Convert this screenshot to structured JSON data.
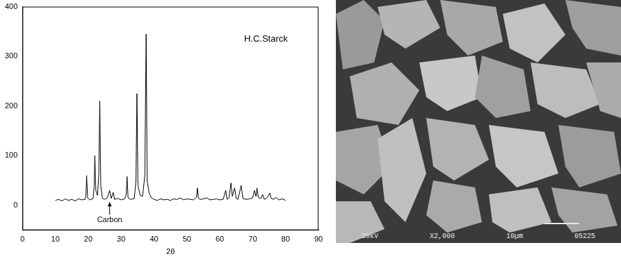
{
  "chart_data": {
    "type": "line",
    "color": "#000000",
    "grid": false,
    "x_label": "2θ",
    "xlim": [
      0,
      90
    ],
    "xticks": [
      0,
      10,
      20,
      30,
      40,
      50,
      60,
      70,
      80,
      90
    ],
    "ylim": [
      -50,
      400
    ],
    "yticks": [
      0,
      100,
      200,
      300,
      400
    ],
    "annotations": [
      {
        "text": "H.C.Starck",
        "x": 74,
        "y": 335
      },
      {
        "text": "Carbon",
        "x": 26.5,
        "y": -30
      }
    ],
    "x": [
      10,
      11,
      12,
      13,
      14,
      15,
      16,
      17,
      18,
      19,
      19.3,
      19.5,
      19.8,
      20.5,
      21.5,
      21.8,
      22,
      22.3,
      22.8,
      23.2,
      23.5,
      23.8,
      24.3,
      25,
      25.8,
      26.5,
      27,
      27.6,
      28,
      29,
      30,
      31,
      31.5,
      31.8,
      32.1,
      33,
      34,
      34.5,
      34.8,
      35.1,
      35.8,
      36.5,
      37.2,
      37.6,
      37.9,
      38.5,
      39.2,
      40,
      41,
      42,
      43,
      44,
      45,
      46,
      47,
      48,
      49,
      50,
      51,
      52,
      52.9,
      53.2,
      53.5,
      54,
      55,
      56,
      57,
      58,
      59,
      60,
      61,
      61.8,
      62.2,
      62.8,
      63.4,
      63.8,
      64.5,
      65,
      65.5,
      66.5,
      67,
      68,
      69,
      70,
      70.5,
      71,
      71.3,
      71.7,
      72.5,
      73,
      73.5,
      74.5,
      75.2,
      75.6,
      76.5,
      77,
      78,
      79,
      80
    ],
    "values": [
      10,
      12,
      9,
      13,
      10,
      12,
      9,
      13,
      11,
      12,
      20,
      60,
      15,
      11,
      14,
      40,
      100,
      30,
      20,
      60,
      210,
      40,
      14,
      12,
      15,
      30,
      14,
      26,
      12,
      14,
      11,
      13,
      20,
      58,
      15,
      12,
      14,
      50,
      225,
      40,
      20,
      18,
      60,
      345,
      50,
      25,
      15,
      12,
      10,
      13,
      11,
      12,
      10,
      13,
      12,
      15,
      11,
      13,
      12,
      11,
      16,
      35,
      14,
      12,
      13,
      15,
      11,
      12,
      13,
      11,
      12,
      30,
      12,
      15,
      45,
      18,
      35,
      14,
      12,
      40,
      14,
      12,
      13,
      15,
      30,
      18,
      35,
      16,
      14,
      22,
      12,
      16,
      25,
      14,
      12,
      16,
      11,
      13,
      10
    ]
  },
  "micrograph": {
    "caption": [
      "20kV",
      "X2,000",
      "10µm",
      "05225"
    ]
  }
}
